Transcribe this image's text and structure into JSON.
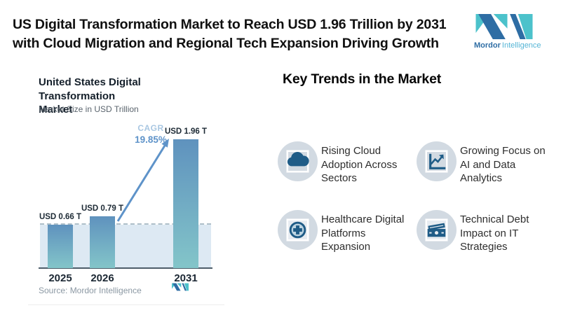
{
  "header": {
    "title_line1": "US Digital Transformation Market to Reach USD 1.96 Trillion by 2031",
    "title_line2": "with Cloud Migration and Regional Tech Expansion Driving Growth",
    "brand": {
      "name": "Mordor",
      "suffix": "Intelligence"
    }
  },
  "chart": {
    "title_line1": "United States Digital Transformation",
    "title_line2": "Market",
    "subtitle": "Market Size in USD Trillion",
    "cagr_label": "CAGR",
    "cagr_value": "19.85%",
    "source": "Source: Mordor Intelligence"
  },
  "chart_data": {
    "type": "bar",
    "title": "United States Digital Transformation Market",
    "ylabel": "Market Size in USD Trillion",
    "categories": [
      "2025",
      "2026",
      "2031"
    ],
    "values": [
      0.66,
      0.79,
      1.96
    ],
    "labels": [
      "USD 0.66 T",
      "USD 0.79 T",
      "USD 1.96 T"
    ],
    "annotations": {
      "cagr": "CAGR 19.85%",
      "dashed_reference_level": 0.66
    },
    "ylim": [
      0,
      2.1
    ],
    "grid": false,
    "legend": false,
    "source": "Source: Mordor Intelligence"
  },
  "trends": {
    "heading": "Key Trends in the Market",
    "items": [
      {
        "icon": "cloud-icon",
        "label": "Rising Cloud Adoption Across Sectors"
      },
      {
        "icon": "analytics-chart-icon",
        "label": "Growing Focus on AI and Data Analytics"
      },
      {
        "icon": "healthcare-plus-icon",
        "label": "Healthcare Digital Platforms Expansion"
      },
      {
        "icon": "banknotes-icon",
        "label": "Technical Debt Impact on IT Strategies"
      }
    ]
  },
  "colors": {
    "accent_blue": "#5e93c9",
    "cagr_light": "#a9c7e2",
    "bar_top": "#5f92be",
    "bar_bottom": "#83c5c9",
    "band": "#dde9f3",
    "dashed": "#aebfc9",
    "icon_circle": "#d2dae2",
    "icon_dark": "#1f5c87",
    "logo_dark": "#2e6da4",
    "logo_teal": "#4cc2cb"
  }
}
